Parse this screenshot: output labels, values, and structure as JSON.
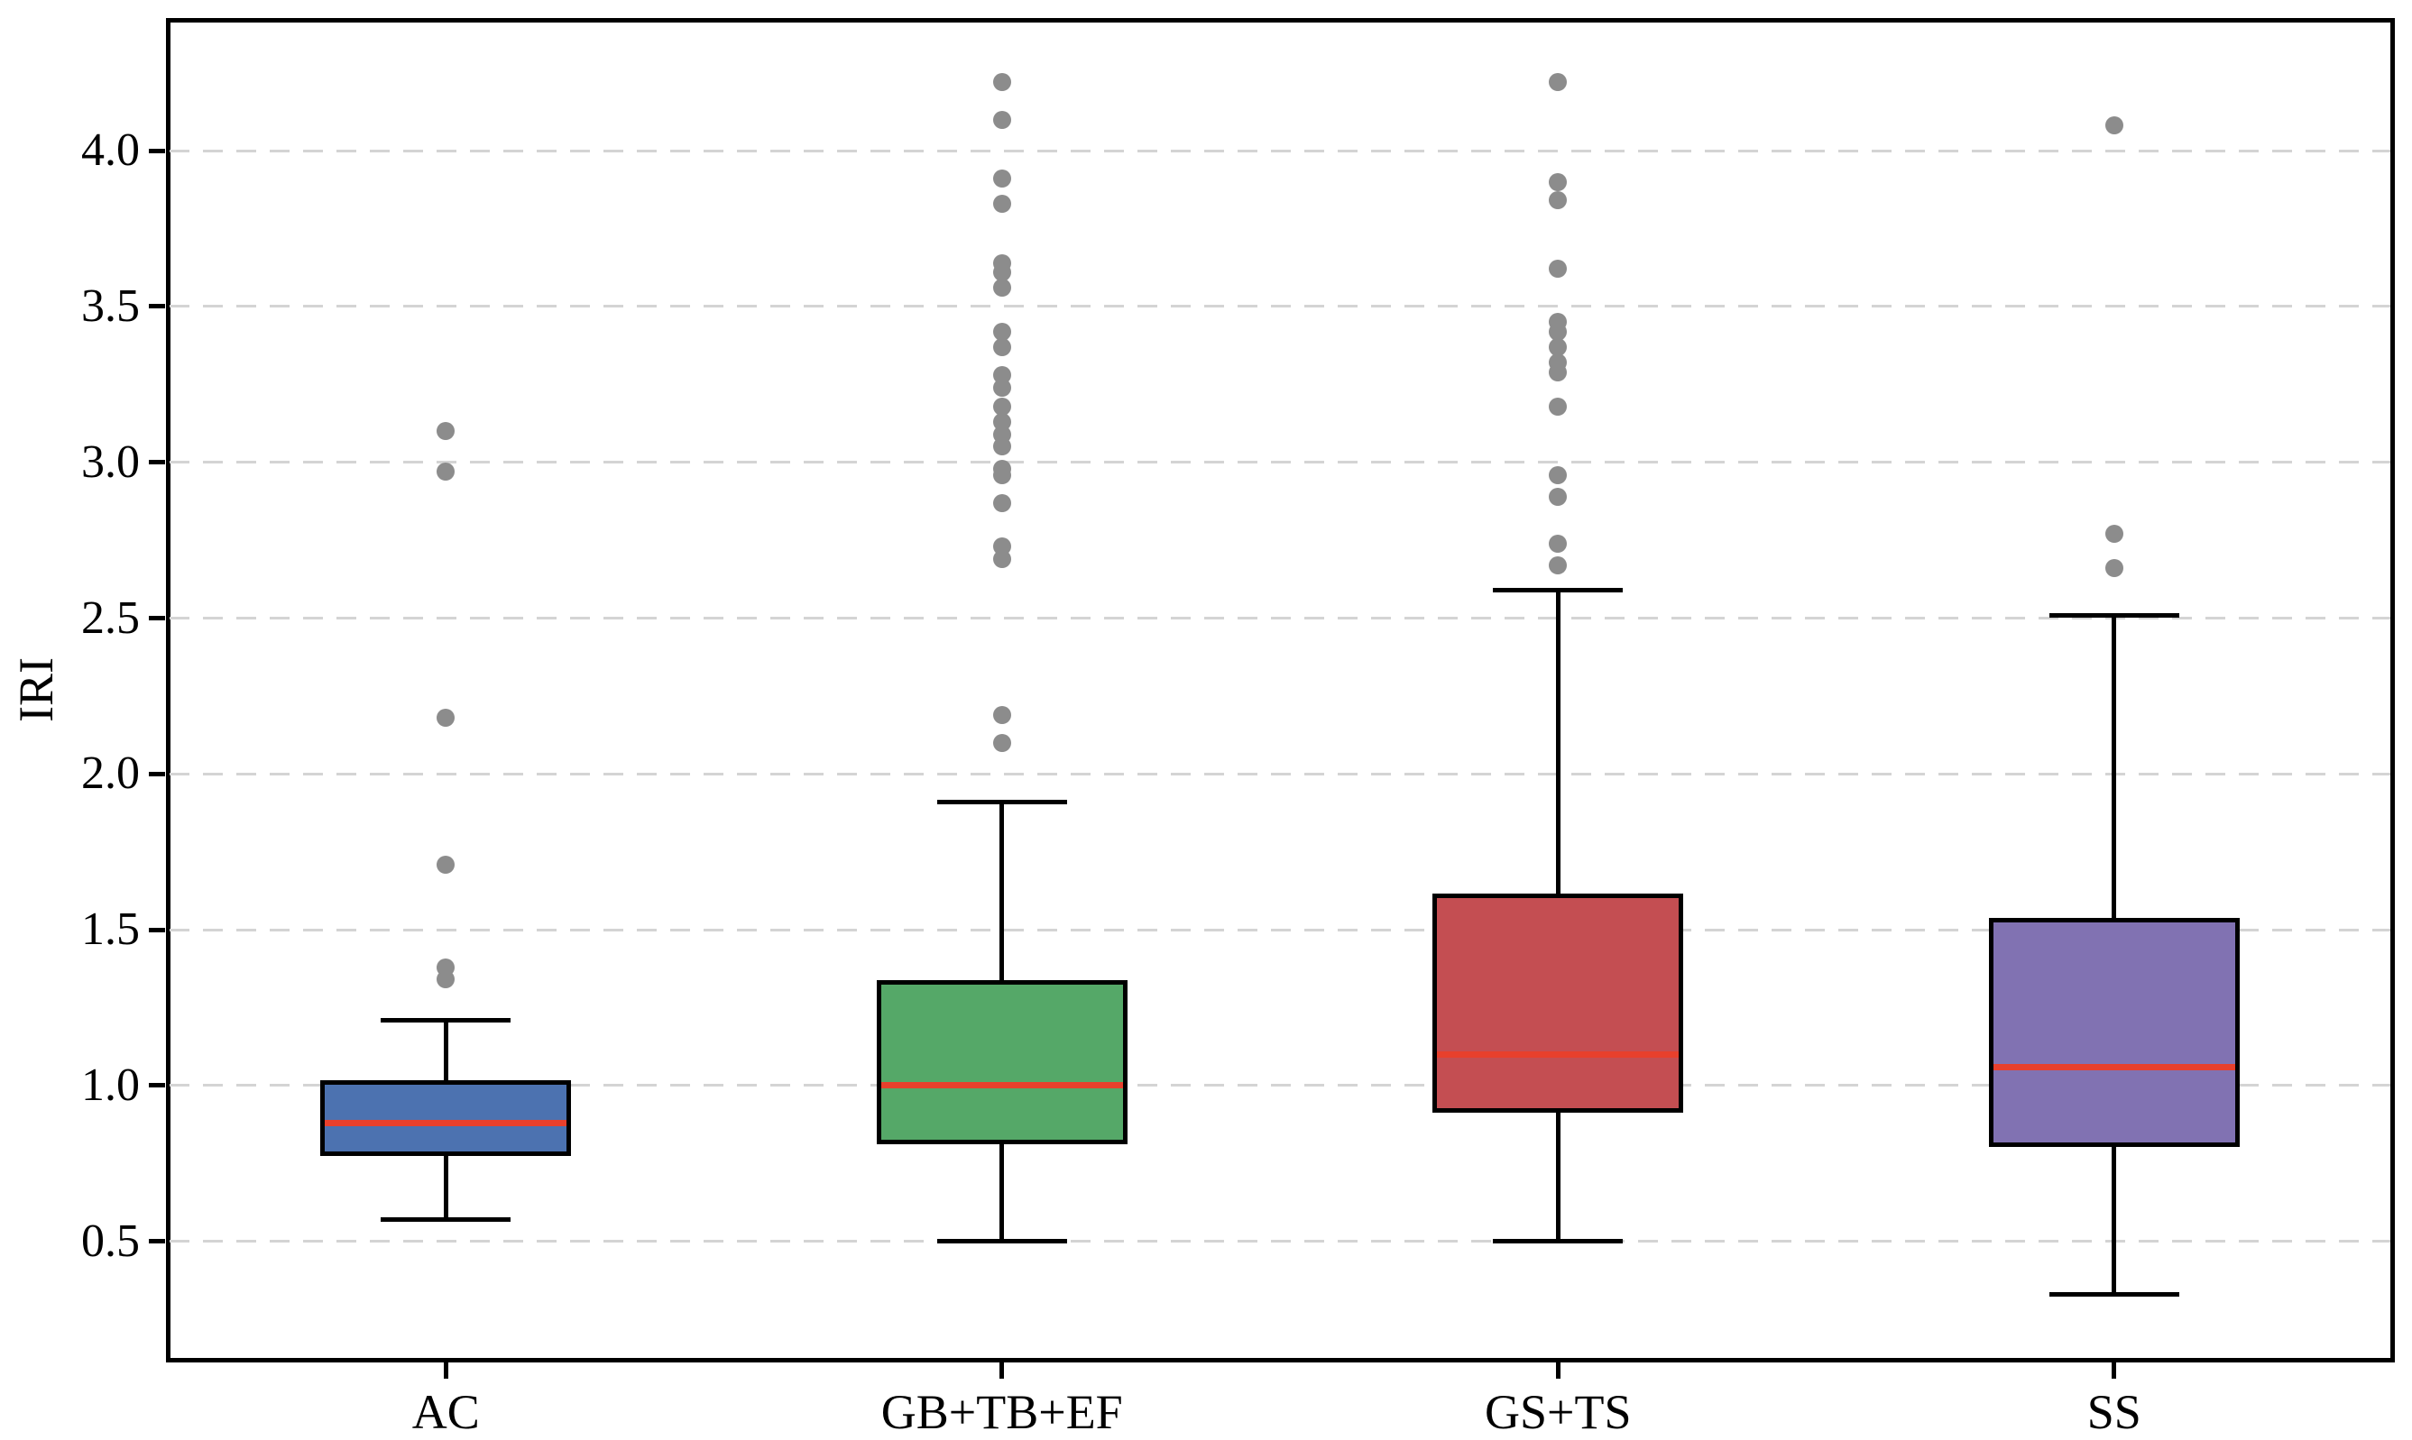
{
  "figure": {
    "background": "#ffffff",
    "spine_color": "#000000",
    "gridline_color": "#d4d4d4",
    "grid_style": "horizontal-dashed"
  },
  "chart_data": {
    "type": "box",
    "title": "",
    "xlabel": "",
    "ylabel": "IRI",
    "categories": [
      "AC",
      "GB+TB+EF",
      "GS+TS",
      "SS"
    ],
    "yticks": [
      0.5,
      1.0,
      1.5,
      2.0,
      2.5,
      3.0,
      3.5,
      4.0
    ],
    "ytick_labels": [
      "0.5",
      "1.0",
      "1.5",
      "2.0",
      "2.5",
      "3.0",
      "3.5",
      "4.0"
    ],
    "ylim": [
      0.12,
      4.42
    ],
    "grid": "horizontal-dashed",
    "legend": "none",
    "median_color": "#e8402c",
    "outlier_color": "#8c8c8c",
    "box_edge_color": "#000000",
    "series": [
      {
        "name": "AC",
        "color": "#4c72b0",
        "q1": 0.78,
        "median": 0.88,
        "q3": 1.01,
        "whisker_low": 0.57,
        "whisker_high": 1.21,
        "outliers": [
          1.34,
          1.38,
          1.71,
          2.18,
          2.97,
          3.1
        ]
      },
      {
        "name": "GB+TB+EF",
        "color": "#55a868",
        "q1": 0.82,
        "median": 1.0,
        "q3": 1.33,
        "whisker_low": 0.5,
        "whisker_high": 1.91,
        "outliers": [
          2.1,
          2.19,
          2.69,
          2.73,
          2.87,
          2.96,
          2.98,
          3.05,
          3.09,
          3.13,
          3.18,
          3.24,
          3.28,
          3.37,
          3.42,
          3.56,
          3.61,
          3.64,
          3.83,
          3.91,
          4.1,
          4.22
        ]
      },
      {
        "name": "GS+TS",
        "color": "#c44e52",
        "q1": 0.92,
        "median": 1.1,
        "q3": 1.61,
        "whisker_low": 0.5,
        "whisker_high": 2.59,
        "outliers": [
          2.67,
          2.74,
          2.89,
          2.96,
          3.18,
          3.29,
          3.32,
          3.37,
          3.42,
          3.45,
          3.62,
          3.84,
          3.9,
          4.22
        ]
      },
      {
        "name": "SS",
        "color": "#8172b2",
        "q1": 0.81,
        "median": 1.06,
        "q3": 1.53,
        "whisker_low": 0.33,
        "whisker_high": 2.51,
        "outliers": [
          2.66,
          2.77,
          4.08
        ]
      }
    ]
  }
}
